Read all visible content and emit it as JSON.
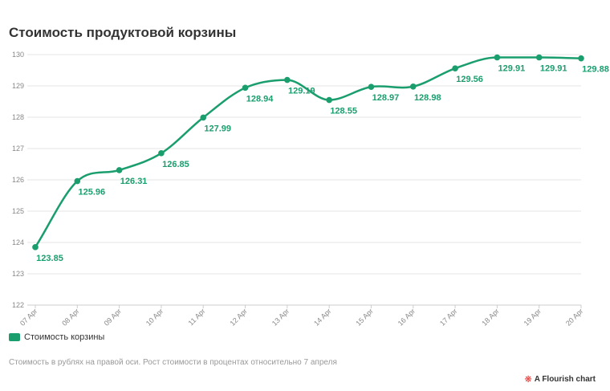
{
  "title": "Стоимость продуктовой корзины",
  "legend": {
    "label": "Стоимость корзины"
  },
  "note": "Стоимость в рублях на правой оси. Рост стоимости в процентах относительно 7 апреля",
  "credit": {
    "icon": "flourish-logo-icon",
    "text": "A Flourish chart"
  },
  "colors": {
    "series": "#1a9e6e",
    "grid": "#e6e6e6",
    "axis": "#cccccc"
  },
  "chart_data": {
    "type": "line",
    "categories": [
      "07 Apr",
      "08 Apr",
      "09 Apr",
      "10 Apr",
      "11 Apr",
      "12 Apr",
      "13 Apr",
      "14 Apr",
      "15 Apr",
      "16 Apr",
      "17 Apr",
      "18 Apr",
      "19 Apr",
      "20 Apr"
    ],
    "series": [
      {
        "name": "Стоимость корзины",
        "values": [
          123.85,
          125.96,
          126.31,
          126.85,
          127.99,
          128.94,
          129.19,
          128.55,
          128.97,
          128.98,
          129.56,
          129.91,
          129.91,
          129.88
        ],
        "labels": [
          "123.85",
          "125.96",
          "126.31",
          "126.85",
          "127.99",
          "128.94",
          "129.19",
          "128.55",
          "128.97",
          "128.98",
          "129.56",
          "129.91",
          "129.91",
          "129.88"
        ]
      }
    ],
    "ylim": [
      122,
      130
    ],
    "yticks": [
      "122",
      "123",
      "124",
      "125",
      "126",
      "127",
      "128",
      "129",
      "130"
    ],
    "grid": true,
    "legend_position": "bottom-left"
  }
}
